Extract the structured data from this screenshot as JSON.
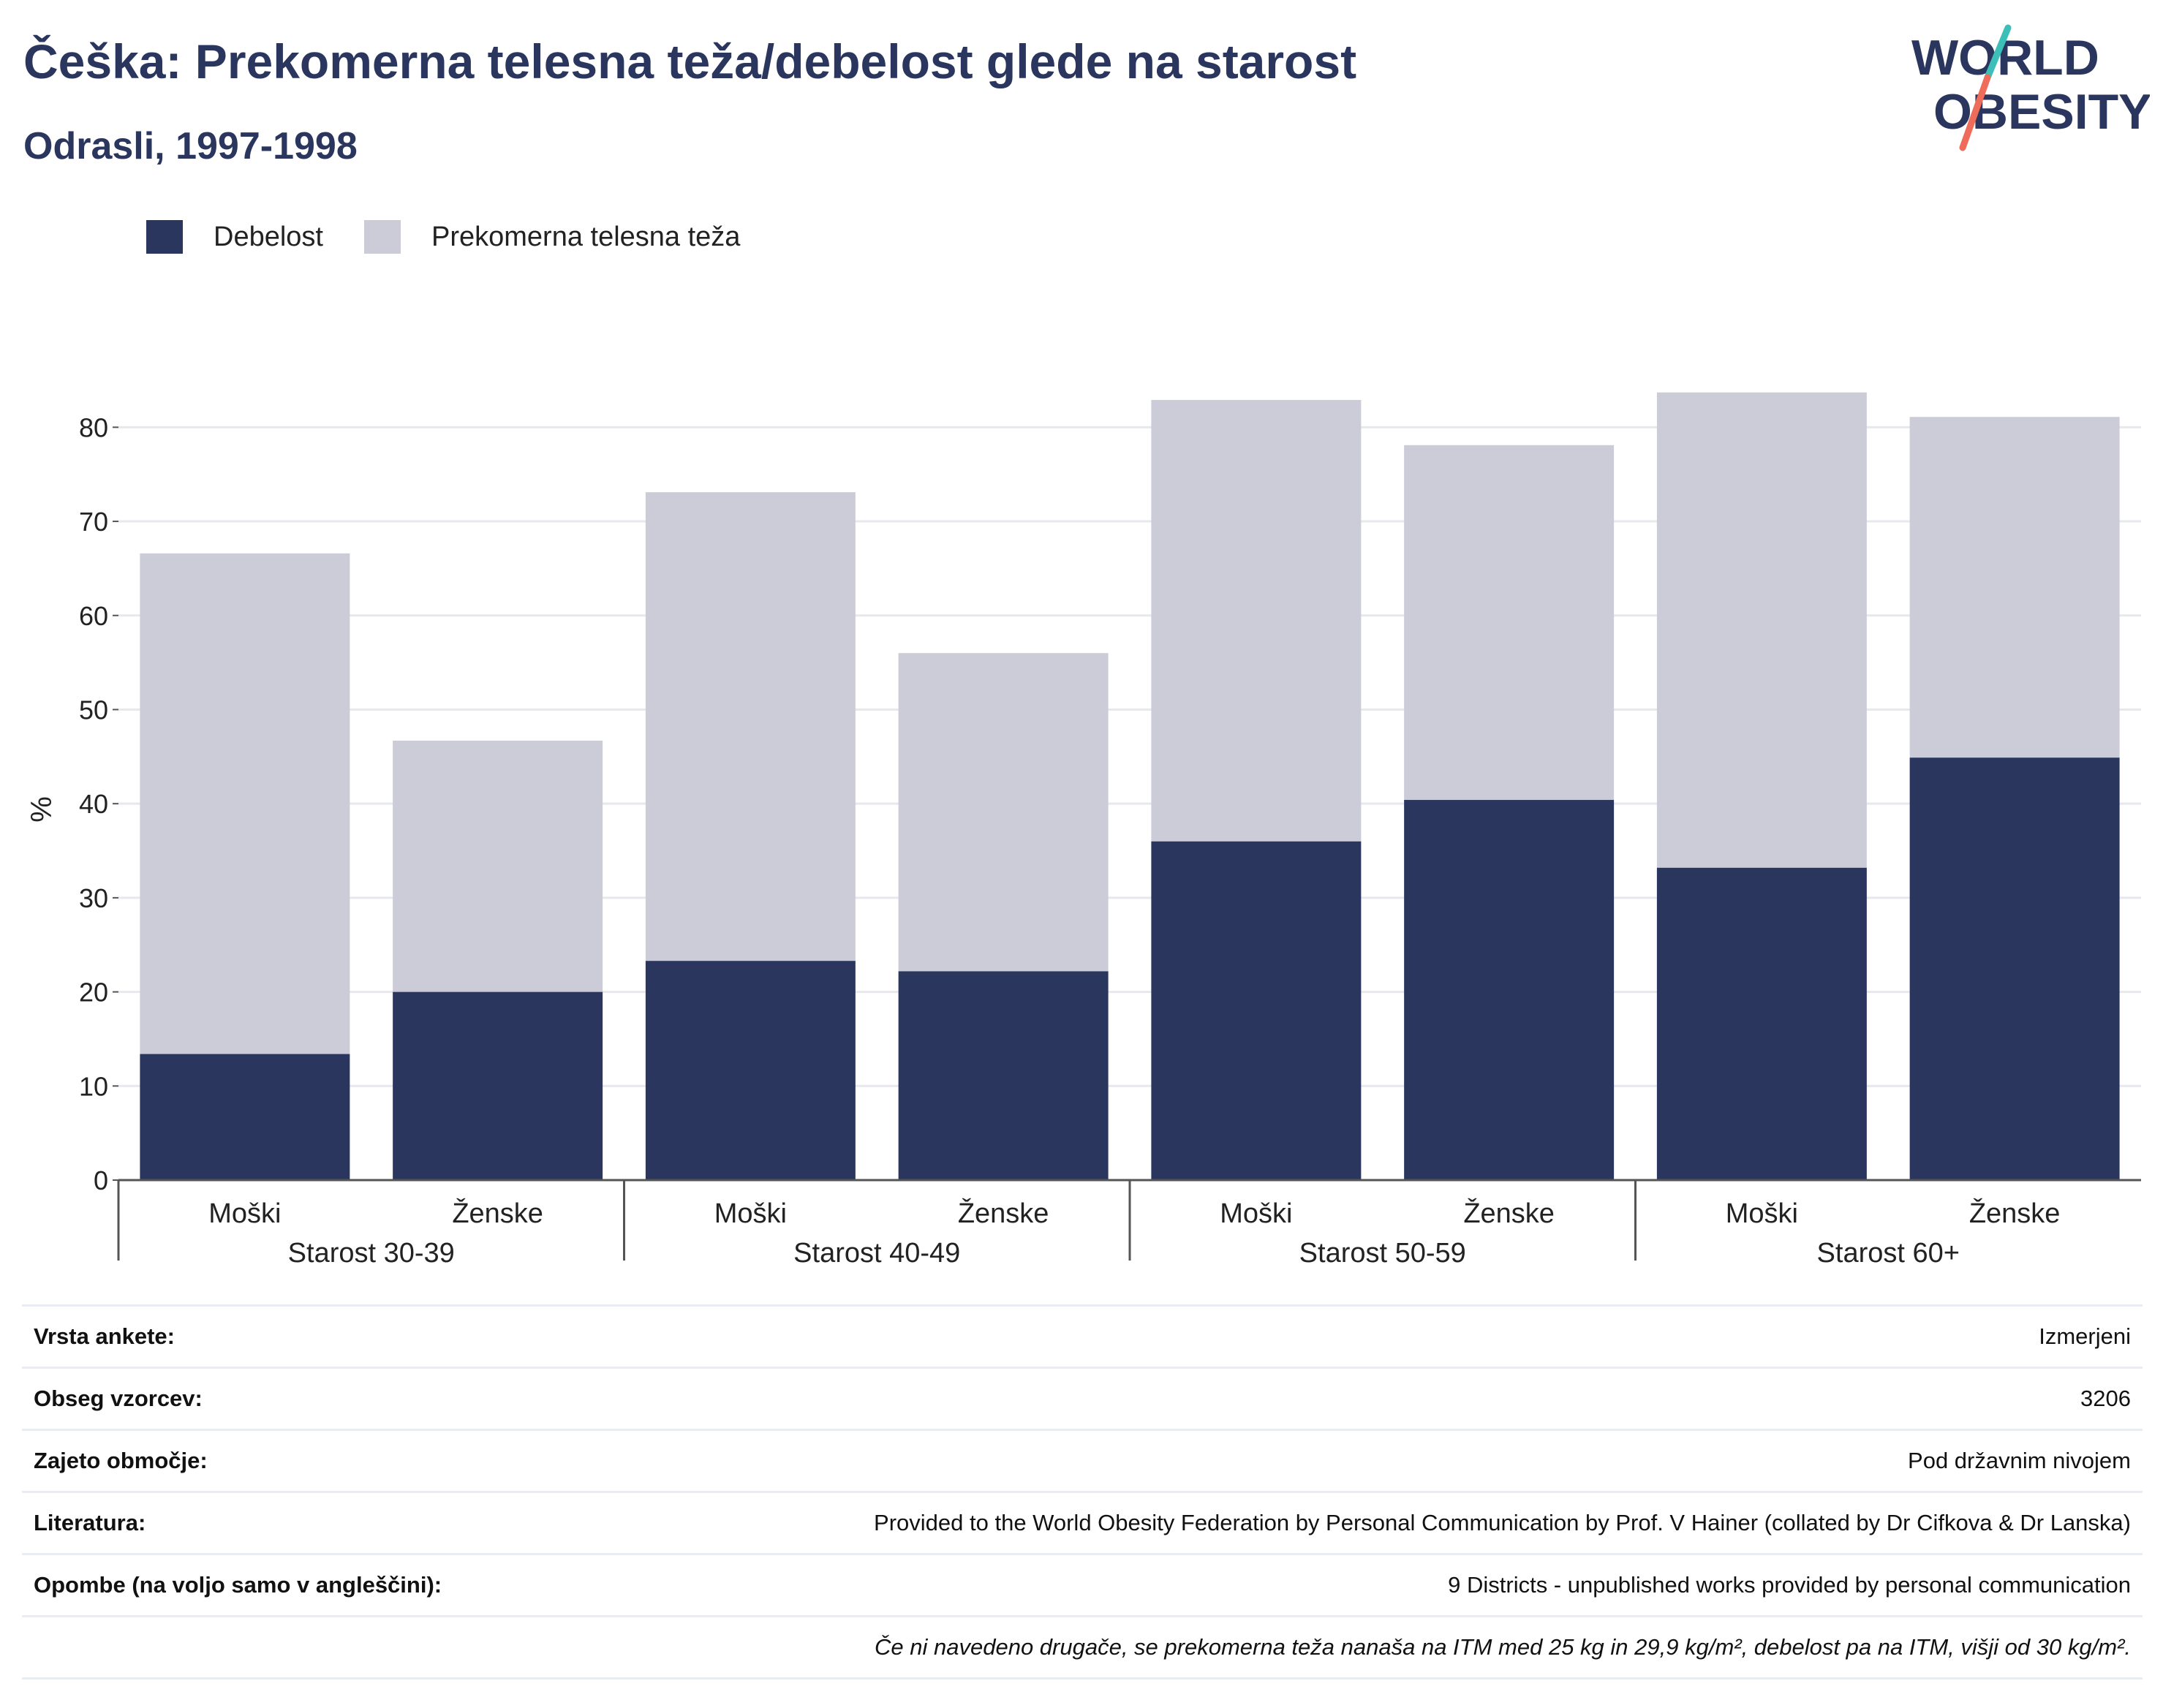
{
  "header": {
    "title": "Češka: Prekomerna telesna teža/debelost glede na starost",
    "subtitle": "Odrasli, 1997-1998"
  },
  "logo": {
    "line1": "WORLD",
    "line2": "OBESITY",
    "colors": {
      "text": "#2b365f",
      "slash_top": "#3cbfb8",
      "slash_bottom": "#ef6b5a"
    }
  },
  "legend": {
    "items": [
      {
        "label": "Debelost",
        "color": "#2b365f"
      },
      {
        "label": "Prekomerna telesna teža",
        "color": "#cbccd8"
      }
    ]
  },
  "chart_data": {
    "type": "bar",
    "stacked": true,
    "ylabel": "%",
    "ylim": [
      0,
      85
    ],
    "yticks": [
      0,
      10,
      20,
      30,
      40,
      50,
      60,
      70,
      80
    ],
    "grid": true,
    "legend_position": "top-left",
    "groups": [
      "Starost 30-39",
      "Starost 40-49",
      "Starost 50-59",
      "Starost 60+"
    ],
    "categories": [
      "Moški",
      "Ženske",
      "Moški",
      "Ženske",
      "Moški",
      "Ženske",
      "Moški",
      "Ženske"
    ],
    "series": [
      {
        "name": "Debelost",
        "color": "#2b365f",
        "values": [
          13.4,
          20.0,
          23.3,
          22.2,
          36.0,
          40.4,
          33.2,
          44.9
        ]
      },
      {
        "name": "Prekomerna telesna teža",
        "color": "#cbccd8",
        "values": [
          53.2,
          26.7,
          49.8,
          33.8,
          46.9,
          37.7,
          50.5,
          36.2
        ]
      }
    ]
  },
  "info": {
    "rows": [
      {
        "label": "Vrsta ankete:",
        "value": "Izmerjeni"
      },
      {
        "label": "Obseg vzorcev:",
        "value": "3206"
      },
      {
        "label": "Zajeto območje:",
        "value": "Pod državnim nivojem"
      },
      {
        "label": "Literatura:",
        "value": "Provided to the World Obesity Federation by Personal Communication by Prof. V Hainer (collated by Dr Cifkova & Dr Lanska)"
      },
      {
        "label": "Opombe (na voljo samo v angleščini):",
        "value": "9 Districts - unpublished works provided by personal communication"
      }
    ],
    "note": "Če ni navedeno drugače, se prekomerna teža nanaša na ITM med 25 kg in 29,9 kg/m², debelost pa na ITM, višji od 30 kg/m²."
  }
}
